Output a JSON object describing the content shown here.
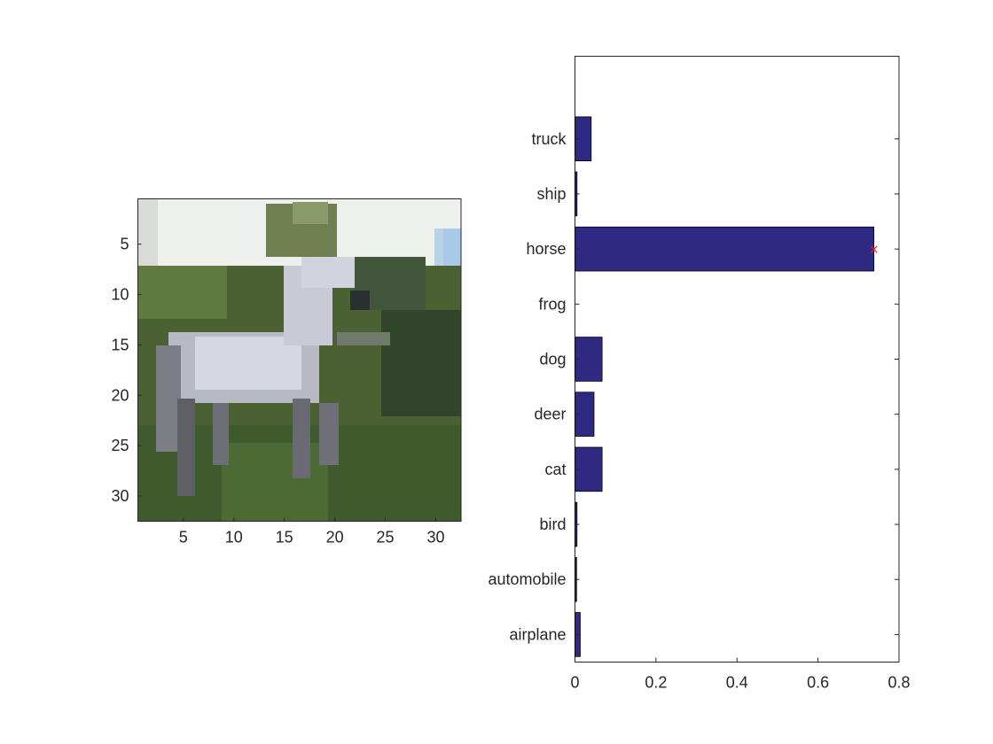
{
  "figure": {
    "image_panel": {
      "content": "low-resolution 32x32 photo of a white horse on grass",
      "xticks": [
        5,
        10,
        15,
        20,
        25,
        30
      ],
      "yticks": [
        5,
        10,
        15,
        20,
        25,
        30
      ],
      "xlim": [
        0.5,
        32.5
      ],
      "ylim": [
        0.5,
        32.5
      ]
    }
  },
  "chart_data": {
    "type": "bar",
    "orientation": "horizontal",
    "categories": [
      "airplane",
      "automobile",
      "bird",
      "cat",
      "deer",
      "dog",
      "frog",
      "horse",
      "ship",
      "truck"
    ],
    "values": [
      0.013,
      0.004,
      0.005,
      0.067,
      0.047,
      0.067,
      0.0,
      0.738,
      0.005,
      0.04
    ],
    "xlim": [
      0,
      0.8
    ],
    "xticks": [
      "0",
      "0.2",
      "0.4",
      "0.6",
      "0.8"
    ],
    "ylim": [
      0.5,
      11.5
    ],
    "bar_color": "#2e2a84",
    "marker": {
      "category": "horse",
      "value": 0.738,
      "symbol": "×",
      "color": "#e2231a"
    },
    "grid": false
  }
}
